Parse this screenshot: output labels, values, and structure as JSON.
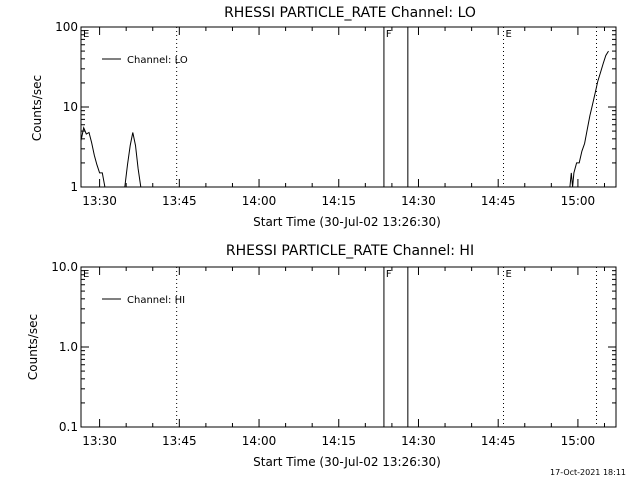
{
  "footer": {
    "timestamp": "17-Oct-2021 18:11"
  },
  "chart_data": [
    {
      "type": "line",
      "title": "RHESSI PARTICLE_RATE Channel: LO",
      "xlabel": "Start Time (30-Jul-02 13:26:30)",
      "ylabel": "Counts/sec",
      "yscale": "log",
      "ylim": [
        1,
        100
      ],
      "y_ticks": [
        1,
        10,
        100
      ],
      "y_tick_labels": [
        "1",
        "10",
        "100"
      ],
      "xlim": [
        "13:26:30",
        "15:07:10"
      ],
      "x_ticks": [
        "13:30",
        "13:45",
        "14:00",
        "14:15",
        "14:30",
        "14:45",
        "15:00"
      ],
      "legend": {
        "entries": [
          "Channel: LO"
        ],
        "position": "top-left"
      },
      "series": [
        {
          "name": "Channel: LO",
          "color": "#000000",
          "segments": [
            [
              [
                "13:26:30",
                3.8
              ],
              [
                "13:27:00",
                5.5
              ],
              [
                "13:27:30",
                4.6
              ],
              [
                "13:28:00",
                4.8
              ],
              [
                "13:28:30",
                3.6
              ],
              [
                "13:29:00",
                2.5
              ],
              [
                "13:29:30",
                1.9
              ],
              [
                "13:30:00",
                1.5
              ],
              [
                "13:30:30",
                1.5
              ],
              [
                "13:31:00",
                1.0
              ]
            ],
            [
              [
                "13:34:45",
                1.0
              ],
              [
                "13:35:15",
                1.9
              ],
              [
                "13:35:45",
                3.3
              ],
              [
                "13:36:15",
                4.8
              ],
              [
                "13:36:45",
                3.3
              ],
              [
                "13:37:15",
                1.7
              ],
              [
                "13:37:45",
                1.0
              ]
            ],
            [
              [
                "14:58:30",
                1.0
              ],
              [
                "14:58:45",
                1.5
              ],
              [
                "14:59:00",
                1.0
              ],
              [
                "14:59:15",
                1.5
              ],
              [
                "14:59:45",
                2.0
              ],
              [
                "15:00:15",
                2.0
              ],
              [
                "15:00:45",
                2.8
              ],
              [
                "15:01:15",
                3.5
              ],
              [
                "15:01:45",
                5.2
              ],
              [
                "15:02:15",
                7.8
              ],
              [
                "15:02:45",
                10.7
              ],
              [
                "15:03:15",
                15
              ],
              [
                "15:03:45",
                21
              ],
              [
                "15:04:15",
                27
              ],
              [
                "15:04:45",
                35
              ],
              [
                "15:05:15",
                44
              ],
              [
                "15:05:45",
                50
              ]
            ]
          ]
        }
      ],
      "annotations": [
        {
          "time": "13:26:30",
          "label": "E",
          "style": "none"
        },
        {
          "time": "13:44:30",
          "label": "",
          "style": "dotted"
        },
        {
          "time": "14:23:30",
          "label": "F",
          "style": "solid"
        },
        {
          "time": "14:28:00",
          "label": "",
          "style": "solid"
        },
        {
          "time": "14:46:00",
          "label": "E",
          "style": "dotted"
        },
        {
          "time": "15:03:30",
          "label": "",
          "style": "dotted"
        }
      ]
    },
    {
      "type": "line",
      "title": "RHESSI PARTICLE_RATE Channel: HI",
      "xlabel": "Start Time (30-Jul-02 13:26:30)",
      "ylabel": "Counts/sec",
      "yscale": "log",
      "ylim": [
        0.1,
        10
      ],
      "y_ticks": [
        0.1,
        1,
        10
      ],
      "y_tick_labels": [
        "0.1",
        "1.0",
        "10.0"
      ],
      "xlim": [
        "13:26:30",
        "15:07:10"
      ],
      "x_ticks": [
        "13:30",
        "13:45",
        "14:00",
        "14:15",
        "14:30",
        "14:45",
        "15:00"
      ],
      "legend": {
        "entries": [
          "Channel: HI"
        ],
        "position": "top-left"
      },
      "series": [
        {
          "name": "Channel: HI",
          "color": "#000000",
          "segments": []
        }
      ],
      "annotations": [
        {
          "time": "13:26:30",
          "label": "E",
          "style": "none"
        },
        {
          "time": "13:44:30",
          "label": "",
          "style": "dotted"
        },
        {
          "time": "14:23:30",
          "label": "F",
          "style": "solid"
        },
        {
          "time": "14:28:00",
          "label": "",
          "style": "solid"
        },
        {
          "time": "14:46:00",
          "label": "E",
          "style": "dotted"
        },
        {
          "time": "15:03:30",
          "label": "",
          "style": "dotted"
        }
      ]
    }
  ]
}
